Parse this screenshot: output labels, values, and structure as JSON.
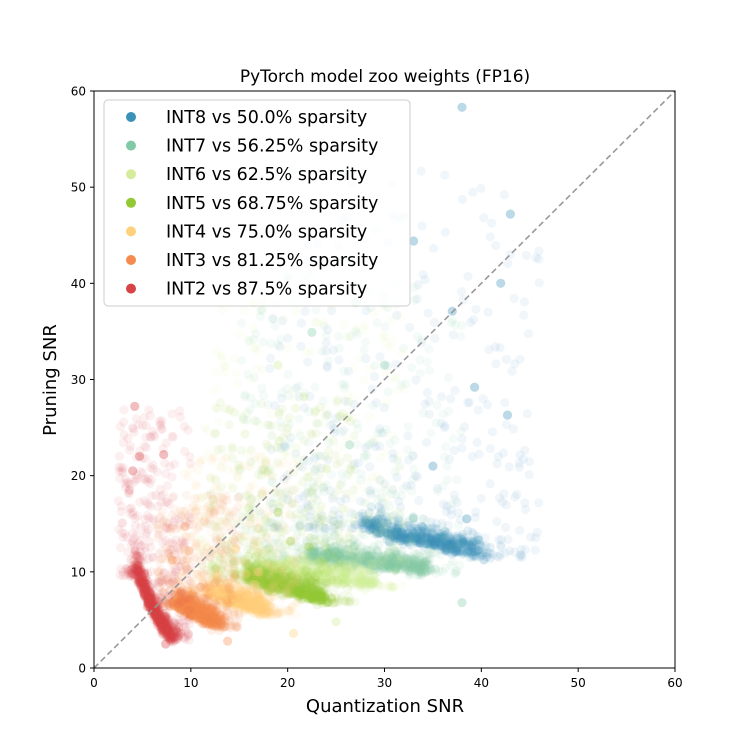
{
  "chart_data": {
    "type": "scatter",
    "title": "PyTorch model zoo weights (FP16)",
    "xlabel": "Quantization SNR",
    "ylabel": "Pruning SNR",
    "xlim": [
      0,
      60
    ],
    "ylim": [
      0,
      60
    ],
    "xticks": [
      "0",
      "10",
      "20",
      "30",
      "40",
      "50",
      "60"
    ],
    "yticks": [
      "0",
      "10",
      "20",
      "30",
      "40",
      "50",
      "60"
    ],
    "grid": false,
    "legend_position": "top-left",
    "reference_line": {
      "label": "y = x",
      "style": "dashed",
      "color": "#999999"
    },
    "point_opacity": 0.08,
    "series": [
      {
        "name": "INT8 vs 50.0% sparsity",
        "color": "#3b92b9",
        "frontier": [
          [
            28.0,
            14.5
          ],
          [
            31.0,
            13.4
          ],
          [
            34.0,
            12.8
          ],
          [
            37.0,
            12.2
          ],
          [
            40.0,
            11.5
          ]
        ],
        "x_spread": [
          18.0,
          46.0
        ],
        "y_max": 52.0,
        "points": [
          [
            43.0,
            47.2
          ],
          [
            38.0,
            58.3
          ],
          [
            42.0,
            40.0
          ],
          [
            37.0,
            37.1
          ],
          [
            39.3,
            29.2
          ],
          [
            42.7,
            26.3
          ],
          [
            35.0,
            21.0
          ],
          [
            38.5,
            15.5
          ],
          [
            33.0,
            44.4
          ]
        ]
      },
      {
        "name": "INT7 vs 56.25% sparsity",
        "color": "#80cba5",
        "frontier": [
          [
            22.0,
            11.2
          ],
          [
            25.0,
            10.9
          ],
          [
            28.0,
            10.6
          ],
          [
            31.0,
            10.3
          ],
          [
            34.5,
            9.8
          ]
        ],
        "x_spread": [
          15.0,
          38.0
        ],
        "y_max": 40.0,
        "points": [
          [
            22.5,
            34.9
          ],
          [
            27.0,
            38.0
          ],
          [
            30.0,
            31.5
          ],
          [
            26.4,
            23.2
          ],
          [
            33.0,
            15.6
          ],
          [
            38.0,
            6.8
          ]
        ]
      },
      {
        "name": "INT6 vs 62.5% sparsity",
        "color": "#d4ec9c",
        "frontier": [
          [
            17.0,
            9.9
          ],
          [
            20.0,
            9.5
          ],
          [
            23.0,
            9.2
          ],
          [
            26.0,
            8.8
          ],
          [
            29.0,
            8.4
          ]
        ],
        "x_spread": [
          11.0,
          32.0
        ],
        "y_max": 38.0,
        "points": [
          [
            16.5,
            38.0
          ],
          [
            19.0,
            31.5
          ],
          [
            21.7,
            28.2
          ],
          [
            24.0,
            20.7
          ],
          [
            25.0,
            4.8
          ]
        ]
      },
      {
        "name": "INT5 vs 68.75% sparsity",
        "color": "#93c934",
        "frontier": [
          [
            15.5,
            9.2
          ],
          [
            17.5,
            8.5
          ],
          [
            19.5,
            8.0
          ],
          [
            21.5,
            7.4
          ],
          [
            24.0,
            6.8
          ]
        ],
        "x_spread": [
          12.0,
          27.0
        ],
        "y_max": 28.0,
        "points": [
          [
            19.0,
            16.2
          ],
          [
            20.3,
            13.2
          ],
          [
            22.2,
            12.6
          ],
          [
            18.0,
            8.0
          ],
          [
            23.6,
            7.1
          ]
        ]
      },
      {
        "name": "INT4 vs 75.0% sparsity",
        "color": "#fed17c",
        "frontier": [
          [
            12.0,
            7.6
          ],
          [
            13.5,
            6.9
          ],
          [
            15.0,
            6.4
          ],
          [
            16.5,
            6.0
          ],
          [
            18.0,
            5.5
          ]
        ],
        "x_spread": [
          9.0,
          21.0
        ],
        "y_max": 22.0,
        "points": [
          [
            14.6,
            12.4
          ],
          [
            15.7,
            9.8
          ],
          [
            16.6,
            8.7
          ],
          [
            17.0,
            10.0
          ],
          [
            20.6,
            3.6
          ]
        ]
      },
      {
        "name": "INT3 vs 81.25% sparsity",
        "color": "#f58b4f",
        "frontier": [
          [
            8.5,
            6.4
          ],
          [
            9.7,
            5.6
          ],
          [
            10.8,
            5.2
          ],
          [
            11.9,
            4.6
          ],
          [
            13.0,
            4.2
          ]
        ],
        "x_spread": [
          6.5,
          15.0
        ],
        "y_max": 18.0,
        "points": [
          [
            9.4,
            14.7
          ],
          [
            9.8,
            12.2
          ],
          [
            8.1,
            11.2
          ],
          [
            11.0,
            8.4
          ],
          [
            13.8,
            2.8
          ]
        ]
      },
      {
        "name": "INT2 vs 87.5% sparsity",
        "color": "#d84347",
        "frontier": [
          [
            4.4,
            9.6
          ],
          [
            5.3,
            7.3
          ],
          [
            6.2,
            5.4
          ],
          [
            7.1,
            3.9
          ],
          [
            8.1,
            2.9
          ]
        ],
        "x_spread": [
          2.5,
          10.0
        ],
        "y_max": 27.0,
        "points": [
          [
            4.2,
            27.2
          ],
          [
            7.2,
            22.2
          ],
          [
            4.7,
            22.0
          ],
          [
            4.0,
            20.5
          ],
          [
            5.2,
            9.8
          ],
          [
            7.4,
            2.5
          ]
        ]
      }
    ]
  }
}
